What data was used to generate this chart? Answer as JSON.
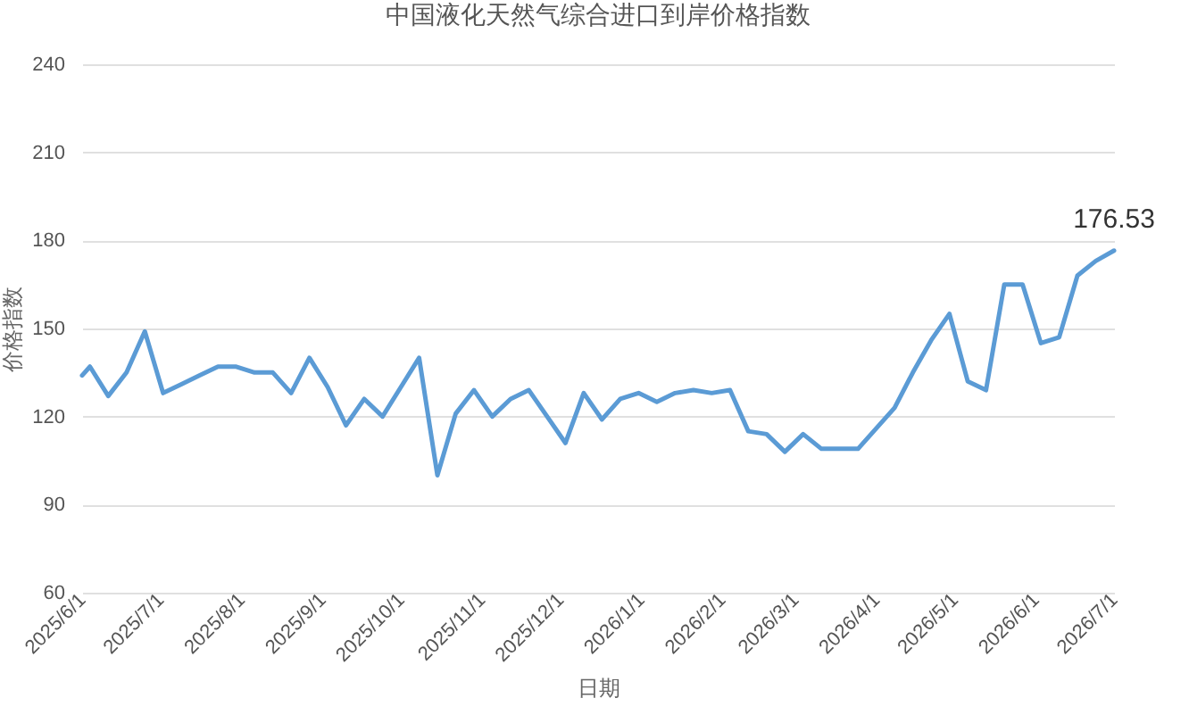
{
  "chart_data": {
    "type": "line",
    "title": "中国液化天然气综合进口到岸价格指数",
    "xlabel": "日期",
    "ylabel": "价格指数",
    "x": [
      "2025-06-01",
      "2025-06-04",
      "2025-06-11",
      "2025-06-18",
      "2025-06-25",
      "2025-07-02",
      "2025-07-09",
      "2025-07-16",
      "2025-07-23",
      "2025-07-30",
      "2025-08-06",
      "2025-08-13",
      "2025-08-20",
      "2025-08-27",
      "2025-09-03",
      "2025-09-10",
      "2025-09-17",
      "2025-09-24",
      "2025-10-01",
      "2025-10-08",
      "2025-10-15",
      "2025-10-22",
      "2025-10-29",
      "2025-11-05",
      "2025-11-12",
      "2025-11-19",
      "2025-11-26",
      "2025-12-03",
      "2025-12-10",
      "2025-12-17",
      "2025-12-24",
      "2025-12-31",
      "2026-01-07",
      "2026-01-14",
      "2026-01-21",
      "2026-01-28",
      "2026-02-04",
      "2026-02-11",
      "2026-02-18",
      "2026-02-25",
      "2026-03-04",
      "2026-03-11",
      "2026-03-18",
      "2026-03-25",
      "2026-04-01",
      "2026-04-08",
      "2026-04-15",
      "2026-04-22",
      "2026-04-29",
      "2026-05-06",
      "2026-05-13",
      "2026-05-20",
      "2026-05-27",
      "2026-06-03",
      "2026-06-10",
      "2026-06-17",
      "2026-06-24",
      "2026-07-01"
    ],
    "series": [
      {
        "color": "#5b9bd5",
        "values": [
          134,
          137,
          127,
          135,
          149,
          128,
          131,
          134,
          137,
          137,
          135,
          135,
          128,
          140,
          130,
          117,
          126,
          120,
          130,
          140,
          100,
          121,
          129,
          120,
          126,
          129,
          120,
          111,
          128,
          119,
          126,
          128,
          125,
          128,
          129,
          128,
          129,
          115,
          114,
          108,
          114,
          109,
          109,
          109,
          116,
          123,
          135,
          146,
          155,
          132,
          129,
          165,
          165,
          145,
          147,
          168,
          173,
          176.53
        ],
        "value_labels": [
          null,
          null,
          null,
          null,
          null,
          null,
          null,
          null,
          null,
          null,
          null,
          null,
          null,
          null,
          null,
          null,
          null,
          null,
          null,
          null,
          null,
          null,
          null,
          null,
          null,
          null,
          null,
          null,
          null,
          null,
          null,
          null,
          null,
          null,
          null,
          null,
          null,
          null,
          null,
          null,
          null,
          null,
          null,
          null,
          null,
          null,
          null,
          null,
          null,
          null,
          null,
          null,
          null,
          null,
          null,
          null,
          null,
          "176.53"
        ]
      }
    ],
    "xlim": [
      "2025-06-01",
      "2026-07-01"
    ],
    "xticks": [
      {
        "value": "2025-06-01",
        "label": "2025/6/1"
      },
      {
        "value": "2025-07-01",
        "label": "2025/7/1"
      },
      {
        "value": "2025-08-01",
        "label": "2025/8/1"
      },
      {
        "value": "2025-09-01",
        "label": "2025/9/1"
      },
      {
        "value": "2025-10-01",
        "label": "2025/10/1"
      },
      {
        "value": "2025-11-01",
        "label": "2025/11/1"
      },
      {
        "value": "2025-12-01",
        "label": "2025/12/1"
      },
      {
        "value": "2026-01-01",
        "label": "2026/1/1"
      },
      {
        "value": "2026-02-01",
        "label": "2026/2/1"
      },
      {
        "value": "2026-03-01",
        "label": "2026/3/1"
      },
      {
        "value": "2026-04-01",
        "label": "2026/4/1"
      },
      {
        "value": "2026-05-01",
        "label": "2026/5/1"
      },
      {
        "value": "2026-06-01",
        "label": "2026/6/1"
      },
      {
        "value": "2026-07-01",
        "label": "2026/7/1"
      }
    ],
    "ylim": [
      60,
      240
    ],
    "yticks": [
      60,
      90,
      120,
      150,
      180,
      210,
      240
    ],
    "grid": "y",
    "marker": "none",
    "line_style": "solid"
  }
}
